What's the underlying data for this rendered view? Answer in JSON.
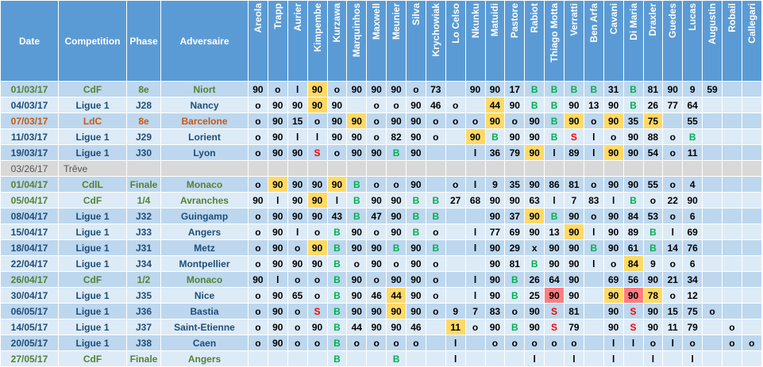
{
  "headers": {
    "date": "Date",
    "competition": "Competition",
    "phase": "Phase",
    "opponent": "Adversaire",
    "players": [
      "Areola",
      "Trapp",
      "Aurier",
      "Kimpembe",
      "Kurzawa",
      "Marquinhos",
      "Maxwell",
      "Meunier",
      "Silva",
      "Krychowiak",
      "Lo Celso",
      "Nkunku",
      "Matuidi",
      "Pastore",
      "Rabiot",
      "Thiago Motta",
      "Verratti",
      "Ben Arfa",
      "Cavani",
      "Di Maria",
      "Draxler",
      "Guedes",
      "Lucas",
      "Augustin",
      "Robail",
      "Callegari"
    ]
  },
  "legend": {
    "o": "on bench / not used",
    "l": "not in squad",
    "B": "goal (green)",
    "S": "sent off (red)",
    "x": "other"
  },
  "colors": {
    "header_bg": "#5b9bd5",
    "row_dark": "#bdd7ee",
    "row_light": "#ddebf7",
    "ligue": "#1f4e79",
    "cup": "#548235",
    "ldc": "#c65911",
    "highlight_yellow": "#ffd966",
    "highlight_red": "#ff7c80",
    "green_mark": "#00b050",
    "red_mark": "#ff0000"
  },
  "rows": [
    {
      "date": "01/03/17",
      "comp": "CdF",
      "phase": "8e",
      "opp": "Niort",
      "type": "cup",
      "cells": [
        "90",
        "o",
        "l",
        "90|y",
        "o",
        "90",
        "90",
        "90",
        "o",
        "73",
        "",
        "90",
        "90",
        "17",
        "B|g",
        "B|g",
        "B|g",
        "B|g",
        "31",
        "B|g",
        "81",
        "90",
        "9",
        "59",
        "",
        ""
      ]
    },
    {
      "date": "04/03/17",
      "comp": "Ligue 1",
      "phase": "J28",
      "opp": "Nancy",
      "type": "ligue",
      "cells": [
        "o",
        "90",
        "90",
        "90|y",
        "90",
        "",
        "o",
        "o",
        "90",
        "46",
        "o",
        "",
        "44|y",
        "90",
        "B|g",
        "B|g",
        "90",
        "13",
        "90",
        "B|g",
        "26",
        "77",
        "64",
        "",
        "",
        ""
      ]
    },
    {
      "date": "07/03/17",
      "comp": "LdC",
      "phase": "8e",
      "opp": "Barcelone",
      "type": "ldc",
      "cells": [
        "o",
        "90",
        "15",
        "o",
        "90",
        "90|y",
        "o",
        "90",
        "90",
        "o",
        "o",
        "o",
        "90|y",
        "o",
        "90",
        "B|g",
        "90|y",
        "o",
        "90|y",
        "35",
        "75|y",
        "",
        "55",
        "",
        "",
        ""
      ]
    },
    {
      "date": "11/03/17",
      "comp": "Ligue 1",
      "phase": "J29",
      "opp": "Lorient",
      "type": "ligue",
      "cells": [
        "o",
        "90",
        "l",
        "l",
        "90",
        "90",
        "o",
        "82",
        "90",
        "o",
        "",
        "90|y",
        "B|g",
        "90",
        "90",
        "B|g",
        "S|s",
        "l",
        "o",
        "90",
        "88",
        "o",
        "B|g",
        "",
        "",
        ""
      ]
    },
    {
      "date": "19/03/17",
      "comp": "Ligue 1",
      "phase": "J30",
      "opp": "Lyon",
      "type": "ligue",
      "cells": [
        "o",
        "90",
        "90",
        "S|s",
        "o",
        "90",
        "90",
        "B|g",
        "90",
        "",
        "",
        "l",
        "36",
        "79",
        "90|y",
        "l",
        "89",
        "l",
        "90|y",
        "90",
        "54",
        "o",
        "11",
        "",
        "",
        ""
      ]
    },
    {
      "date": "03/26/17",
      "comp": "Trêve",
      "phase": "",
      "opp": "",
      "type": "treve",
      "cells": []
    },
    {
      "date": "01/04/17",
      "comp": "CdlL",
      "phase": "Finale",
      "opp": "Monaco",
      "type": "cup",
      "cells": [
        "o",
        "90|y",
        "90",
        "90",
        "90|y",
        "B|g",
        "o",
        "o",
        "90",
        "",
        "o",
        "l",
        "9",
        "35",
        "90",
        "86",
        "81",
        "o",
        "90",
        "90",
        "55",
        "o",
        "4",
        "",
        "",
        ""
      ]
    },
    {
      "date": "05/04/17",
      "comp": "CdF",
      "phase": "1/4",
      "opp": "Avranches",
      "type": "cup",
      "cells": [
        "90",
        "l",
        "90",
        "90|y",
        "l",
        "B|g",
        "90",
        "90",
        "B|g",
        "B|g",
        "27",
        "68",
        "90",
        "90",
        "63",
        "l",
        "7",
        "83",
        "l",
        "B|g",
        "o",
        "22",
        "90",
        "",
        "",
        ""
      ]
    },
    {
      "date": "08/04/17",
      "comp": "Ligue 1",
      "phase": "J32",
      "opp": "Guingamp",
      "type": "ligue",
      "cells": [
        "o",
        "90",
        "90",
        "90",
        "43",
        "B|g",
        "47",
        "90",
        "B|g",
        "B|g",
        "",
        "",
        "90",
        "37",
        "90|y",
        "B|g",
        "90",
        "o",
        "90",
        "84",
        "53",
        "o",
        "6",
        "",
        "",
        ""
      ]
    },
    {
      "date": "15/04/17",
      "comp": "Ligue 1",
      "phase": "J33",
      "opp": "Angers",
      "type": "ligue",
      "cells": [
        "o",
        "90",
        "l",
        "o",
        "B|g",
        "90",
        "o",
        "90",
        "B|g",
        "o",
        "",
        "l",
        "77",
        "69",
        "90",
        "13",
        "90|y",
        "l",
        "90",
        "89",
        "B|g",
        "l",
        "69",
        "",
        "",
        ""
      ]
    },
    {
      "date": "18/04/17",
      "comp": "Ligue 1",
      "phase": "J31",
      "opp": "Metz",
      "type": "ligue",
      "cells": [
        "o",
        "90",
        "o",
        "90|y",
        "B|g",
        "90",
        "90",
        "B|g",
        "90",
        "B|g",
        "",
        "l",
        "90",
        "29",
        "x",
        "90",
        "90",
        "B|g",
        "90",
        "61",
        "B|g",
        "14",
        "76",
        "",
        "",
        ""
      ]
    },
    {
      "date": "22/04/17",
      "comp": "Ligue 1",
      "phase": "J34",
      "opp": "Montpellier",
      "type": "ligue",
      "cells": [
        "o",
        "90",
        "90",
        "90",
        "B|g",
        "o",
        "90",
        "o",
        "90",
        "o",
        "",
        "",
        "90",
        "81",
        "B|g",
        "90",
        "90",
        "l",
        "o",
        "84|y",
        "9",
        "o",
        "6",
        "",
        "",
        ""
      ]
    },
    {
      "date": "26/04/17",
      "comp": "CdF",
      "phase": "1/2",
      "opp": "Monaco",
      "type": "cup",
      "cells": [
        "90",
        "l",
        "o",
        "o",
        "B|g",
        "90",
        "o",
        "90",
        "90",
        "o",
        "",
        "l",
        "90",
        "B|g",
        "26",
        "64",
        "90",
        "",
        "69",
        "56",
        "90",
        "21",
        "34",
        "",
        "",
        ""
      ]
    },
    {
      "date": "30/04/17",
      "comp": "Ligue 1",
      "phase": "J35",
      "opp": "Nice",
      "type": "ligue",
      "cells": [
        "o",
        "90",
        "65",
        "o",
        "B|g",
        "90",
        "46",
        "44|y",
        "90",
        "o",
        "",
        "l",
        "90",
        "B|g",
        "25",
        "90|r",
        "90",
        "",
        "90|y",
        "90|r",
        "78|y",
        "o",
        "12",
        "",
        "",
        ""
      ]
    },
    {
      "date": "06/05/17",
      "comp": "Ligue 1",
      "phase": "J36",
      "opp": "Bastia",
      "type": "ligue",
      "cells": [
        "o",
        "90",
        "o",
        "S|s",
        "B|g",
        "90",
        "90",
        "90|y",
        "90",
        "o",
        "9",
        "7",
        "83",
        "o",
        "90",
        "S|s",
        "81",
        "",
        "90",
        "S|s",
        "90",
        "15",
        "75",
        "o",
        "",
        ""
      ]
    },
    {
      "date": "14/05/17",
      "comp": "Ligue 1",
      "phase": "J37",
      "opp": "Saint-Etienne",
      "type": "ligue",
      "cells": [
        "o",
        "90",
        "o",
        "90",
        "B|g",
        "44",
        "90",
        "90",
        "46",
        "",
        "11|y",
        "o",
        "90",
        "B|g",
        "90",
        "S|s",
        "79",
        "",
        "90",
        "S|s",
        "90",
        "11",
        "79",
        "",
        "o",
        ""
      ]
    },
    {
      "date": "20/05/17",
      "comp": "Ligue 1",
      "phase": "J38",
      "opp": "Caen",
      "type": "ligue",
      "cells": [
        "o",
        "90",
        "o",
        "o",
        "B|g",
        "o",
        "o",
        "o",
        "o",
        "",
        "l",
        "",
        "o",
        "o",
        "o",
        "o",
        "o",
        "",
        "l",
        "l",
        "o",
        "l",
        "o",
        "",
        "o",
        "o"
      ]
    },
    {
      "date": "27/05/17",
      "comp": "CdF",
      "phase": "Finale",
      "opp": "Angers",
      "type": "cup",
      "cells": [
        "",
        "",
        "",
        "",
        "B|g",
        "",
        "",
        "B|g",
        "",
        "",
        "l",
        "",
        "",
        "",
        "l",
        "",
        "l",
        "",
        "l",
        "",
        "l",
        "",
        "l",
        "",
        "",
        ""
      ]
    }
  ]
}
